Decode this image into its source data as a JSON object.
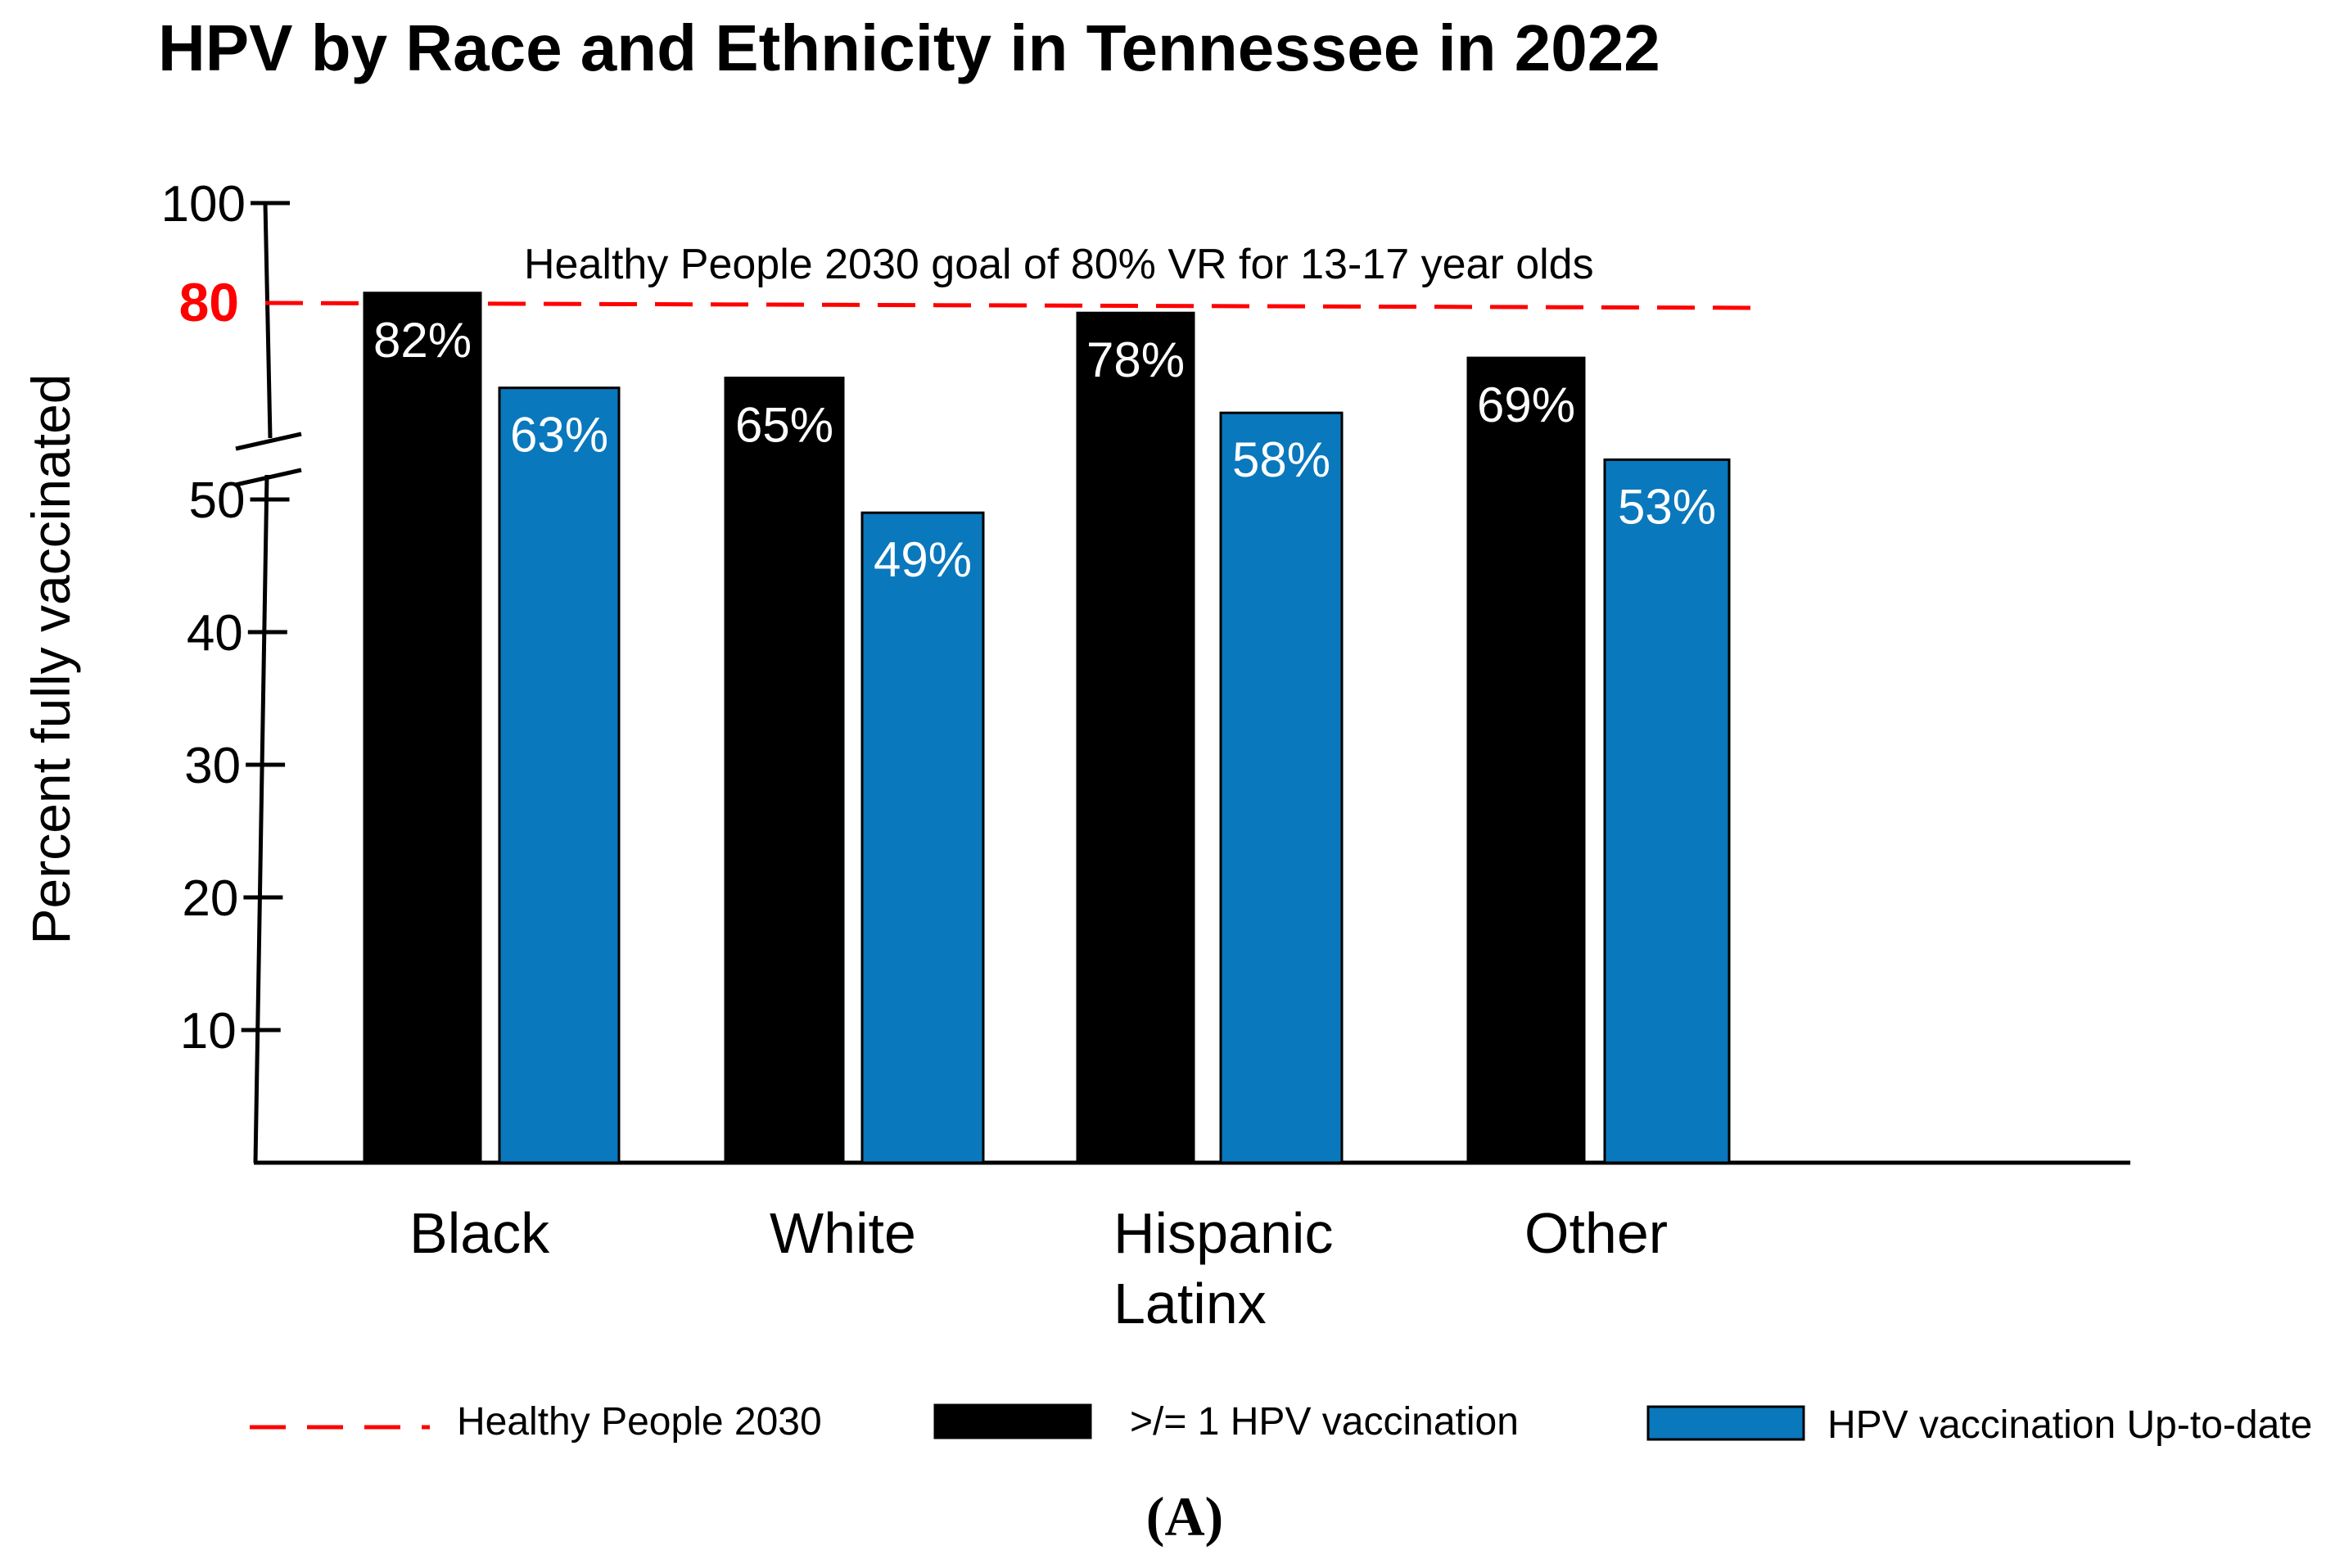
{
  "chart_data": {
    "type": "bar",
    "title": "HPV by Race and Ethnicity in Tennessee in 2022",
    "ylabel": "Percent fully vaccinated",
    "xlabel": "",
    "categories": [
      [
        "Black"
      ],
      [
        "White"
      ],
      [
        "Hispanic",
        "Latinx"
      ],
      [
        "Other"
      ]
    ],
    "series": [
      {
        "name": ">/= 1 HPV vaccination",
        "color": "#000000",
        "values": [
          82,
          65,
          78,
          69
        ],
        "labels": [
          "82%",
          "65%",
          "78%",
          "69%"
        ]
      },
      {
        "name": "HPV vaccination Up-to-date",
        "color": "#0a78bd",
        "values": [
          63,
          49,
          58,
          53
        ],
        "labels": [
          "63%",
          "49%",
          "58%",
          "53%"
        ]
      }
    ],
    "yticks": [
      "10",
      "20",
      "30",
      "40",
      "50",
      "100"
    ],
    "ylim": [
      0,
      100
    ],
    "axis_break": true,
    "reference_line": {
      "value": 80,
      "tick_label": "80",
      "label": "Healthy People 2030 goal of 80% VR for 13-17 year olds",
      "legend_label": "Healthy People 2030",
      "color": "#ff0000",
      "style": "dashed"
    },
    "grid": false,
    "legend_position": "bottom",
    "panel_label": "(A)"
  }
}
